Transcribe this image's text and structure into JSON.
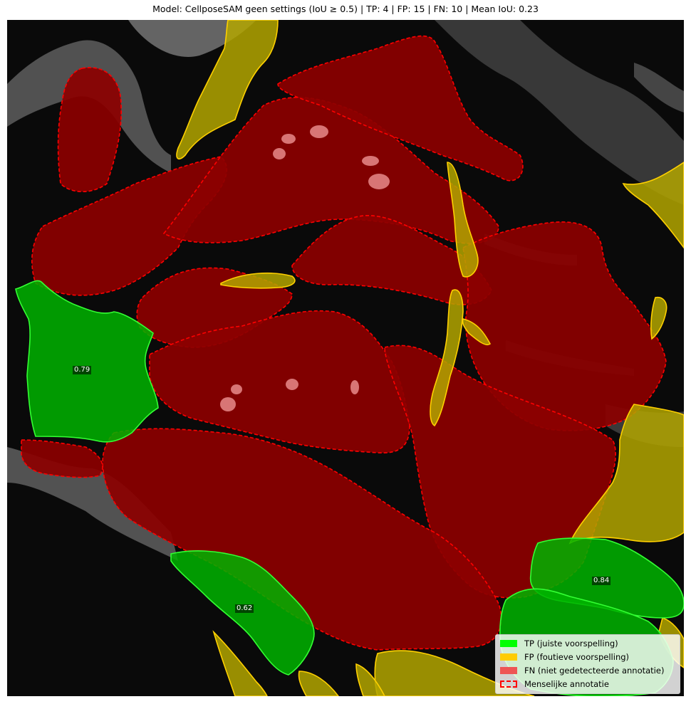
{
  "title": "Model: CellposeSAM geen settings (IoU ≥ 0.5) | TP: 4 | FP: 15 | FN: 10 | Mean IoU: 0.23",
  "iou_labels": [
    {
      "text": "0.79"
    },
    {
      "text": "0.84"
    },
    {
      "text": "0.62"
    }
  ],
  "legend": {
    "items": [
      {
        "label": "TP (juiste voorspelling)",
        "color": "#00ff00"
      },
      {
        "label": "FP (foutieve voorspelling)",
        "color": "#ffcc00"
      },
      {
        "label": "FN (niet gedetecteerde annotatie)",
        "color": "#ee5555"
      },
      {
        "label": "Menselijke annotatie",
        "color": "#ff0000"
      }
    ]
  },
  "colors": {
    "tp_fill": "#00b400",
    "tp_edge": "#33ff33",
    "fp_fill": "#b3a600",
    "fp_edge": "#ffd000",
    "fn_fill": "#8c0000",
    "annotation_edge": "#ff0000",
    "background": "#0a0a0a"
  }
}
